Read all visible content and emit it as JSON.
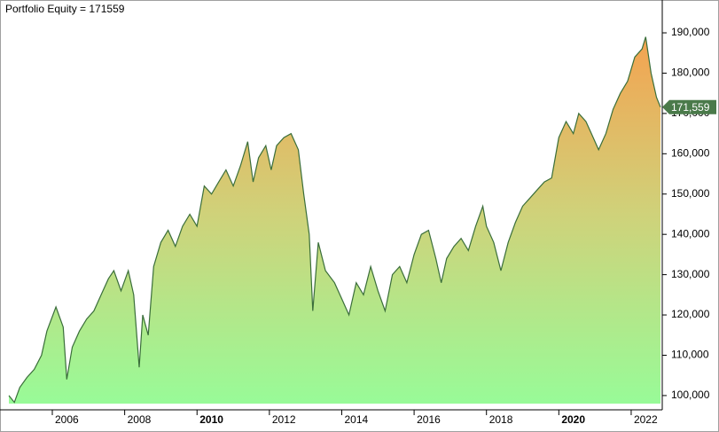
{
  "chart_data": {
    "type": "area",
    "title": "Portfolio Equity = 171559",
    "x": [
      2004.8,
      2004.95,
      2005.1,
      2005.3,
      2005.5,
      2005.7,
      2005.85,
      2006.1,
      2006.3,
      2006.4,
      2006.55,
      2006.75,
      2006.95,
      2007.15,
      2007.35,
      2007.55,
      2007.7,
      2007.9,
      2008.1,
      2008.25,
      2008.4,
      2008.5,
      2008.65,
      2008.8,
      2009.0,
      2009.2,
      2009.4,
      2009.6,
      2009.8,
      2010.0,
      2010.2,
      2010.4,
      2010.6,
      2010.8,
      2011.0,
      2011.2,
      2011.4,
      2011.55,
      2011.7,
      2011.9,
      2012.05,
      2012.2,
      2012.4,
      2012.6,
      2012.8,
      2012.95,
      2013.1,
      2013.2,
      2013.35,
      2013.55,
      2013.8,
      2014.0,
      2014.2,
      2014.4,
      2014.6,
      2014.8,
      2015.0,
      2015.2,
      2015.4,
      2015.6,
      2015.8,
      2016.0,
      2016.2,
      2016.4,
      2016.6,
      2016.75,
      2016.9,
      2017.1,
      2017.3,
      2017.5,
      2017.7,
      2017.9,
      2018.0,
      2018.2,
      2018.4,
      2018.6,
      2018.8,
      2019.0,
      2019.2,
      2019.4,
      2019.6,
      2019.8,
      2020.0,
      2020.2,
      2020.4,
      2020.55,
      2020.75,
      2020.9,
      2021.1,
      2021.3,
      2021.5,
      2021.7,
      2021.9,
      2022.1,
      2022.3,
      2022.4,
      2022.55,
      2022.7,
      2022.81
    ],
    "series": [
      {
        "name": "Portfolio Equity",
        "color": "#3a6e3a",
        "values": [
          100000,
          98300,
          102000,
          104500,
          106500,
          110000,
          116000,
          122000,
          117000,
          104000,
          112000,
          116000,
          119000,
          121000,
          125000,
          129000,
          131000,
          126000,
          131000,
          125000,
          107000,
          120000,
          115000,
          132000,
          138000,
          141000,
          137000,
          142000,
          145000,
          142000,
          152000,
          150000,
          153000,
          156000,
          152000,
          157000,
          163000,
          153000,
          159000,
          162000,
          156000,
          162000,
          164000,
          165000,
          161000,
          150000,
          140000,
          121000,
          138000,
          131000,
          128000,
          124000,
          120000,
          128000,
          125000,
          132000,
          126000,
          121000,
          130000,
          132000,
          128000,
          135000,
          140000,
          141000,
          134000,
          128000,
          134000,
          137000,
          139000,
          136000,
          142000,
          147000,
          142000,
          138000,
          131000,
          138000,
          143000,
          147000,
          149000,
          151000,
          153000,
          154000,
          164000,
          168000,
          165000,
          170000,
          168000,
          165000,
          161000,
          165000,
          171000,
          175000,
          178000,
          184000,
          186000,
          189000,
          180000,
          174000,
          171559
        ]
      }
    ],
    "last_value": {
      "value": 171559,
      "label": "171,559"
    },
    "xlim": [
      2004.75,
      2022.81
    ],
    "xticks": [
      2006,
      2008,
      2010,
      2012,
      2014,
      2016,
      2018,
      2020,
      2022
    ],
    "ylim": [
      98000,
      198150
    ],
    "yticks": [
      {
        "value": 100000,
        "label": "100,000"
      },
      {
        "value": 110000,
        "label": "110,000"
      },
      {
        "value": 120000,
        "label": "120,000"
      },
      {
        "value": 130000,
        "label": "130,000"
      },
      {
        "value": 140000,
        "label": "140,000"
      },
      {
        "value": 150000,
        "label": "150,000"
      },
      {
        "value": 160000,
        "label": "160,000"
      },
      {
        "value": 170000,
        "label": "170,000"
      },
      {
        "value": 180000,
        "label": "180,000"
      },
      {
        "value": 190000,
        "label": "190,000"
      }
    ],
    "grid": false
  }
}
